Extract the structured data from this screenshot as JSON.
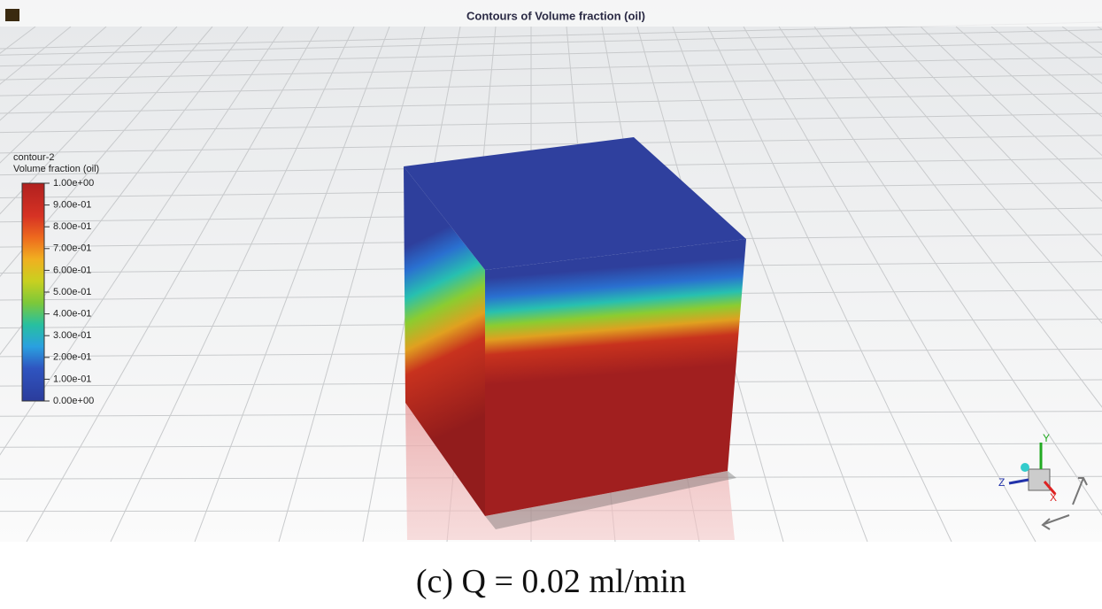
{
  "viewer": {
    "title": "Contours of Volume fraction (oil)",
    "legend": {
      "name": "contour-2",
      "quantity": "Volume fraction (oil)",
      "labels": [
        "1.00e+00",
        "9.00e-01",
        "8.00e-01",
        "7.00e-01",
        "6.00e-01",
        "5.00e-01",
        "4.00e-01",
        "3.00e-01",
        "2.00e-01",
        "1.00e-01",
        "0.00e+00"
      ]
    },
    "axes": {
      "y": "Y",
      "z": "Z",
      "x": "X"
    }
  },
  "caption": "(c) Q = 0.02 ml/min"
}
